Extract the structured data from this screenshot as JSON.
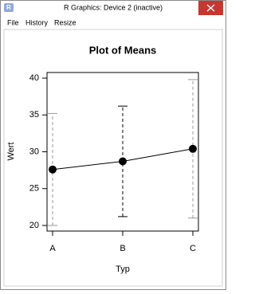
{
  "window": {
    "title": "R Graphics: Device 2 (inactive)",
    "menu": [
      "File",
      "History",
      "Resize"
    ]
  },
  "chart_data": {
    "type": "errorbar-line",
    "title": "Plot of Means",
    "x_label": "Typ",
    "y_label": "Wert",
    "categories": [
      "A",
      "B",
      "C"
    ],
    "values": [
      27.6,
      28.7,
      30.4
    ],
    "errors": [
      7.6,
      7.5,
      9.4
    ],
    "color": "#000000",
    "error_bar_colors": [
      "#999999",
      "#000000",
      "#999999"
    ],
    "ylim": [
      19.24,
      40.76
    ],
    "yticks": [
      20,
      25,
      30,
      35,
      40
    ]
  }
}
